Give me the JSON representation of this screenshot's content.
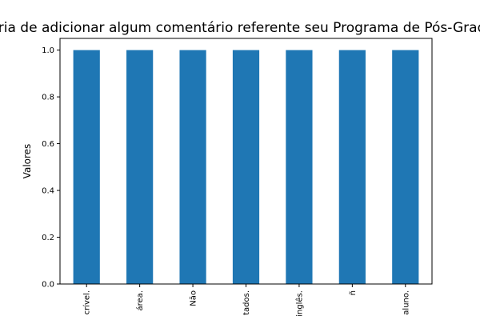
{
  "chart_data": {
    "type": "bar",
    "title": "Gostaria de adicionar algum comentário referente seu Programa de Pós-Graduação?",
    "xlabel": "",
    "ylabel": "Valores",
    "categories": [
      "crível.",
      "área.",
      "Não",
      "tados.",
      "inglês.",
      "ñ",
      "aluno."
    ],
    "values": [
      1.0,
      1.0,
      1.0,
      1.0,
      1.0,
      1.0,
      1.0
    ],
    "ylim": [
      0,
      1.05
    ],
    "yticks": [
      "0.0",
      "0.2",
      "0.4",
      "0.6",
      "0.8",
      "1.0"
    ],
    "bar_color": "#1f77b4",
    "grid": false,
    "legend": false
  }
}
